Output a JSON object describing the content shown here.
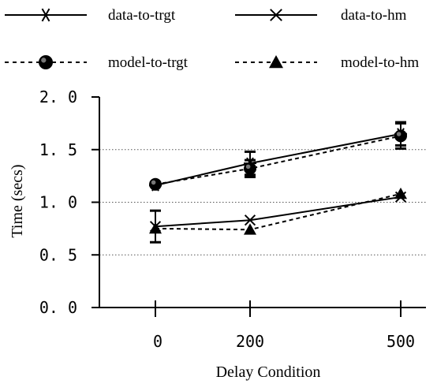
{
  "chart_data": {
    "type": "line",
    "xlabel": "Delay Condition",
    "ylabel": "Time (secs)",
    "ylim": [
      0,
      2.0
    ],
    "yticks": [
      "0. 0",
      "0. 5",
      "1. 0",
      "1. 5",
      "2. 0"
    ],
    "ytick_values": [
      0,
      0.5,
      1.0,
      1.5,
      2.0
    ],
    "grid": "horizontal dotted at 0.5, 1.0, 1.5",
    "legend_position": "top",
    "x": [
      0,
      200,
      500
    ],
    "xtick_labels": [
      "0",
      "200",
      "500"
    ],
    "series": [
      {
        "name": "data-to-trgt",
        "style": "solid",
        "marker": "asterisk",
        "values": [
          1.16,
          1.37,
          1.65
        ],
        "error": [
          null,
          0.11,
          0.11
        ]
      },
      {
        "name": "data-to-hm",
        "style": "solid",
        "marker": "x",
        "values": [
          0.77,
          0.83,
          1.05
        ],
        "error": [
          0.15,
          null,
          null
        ]
      },
      {
        "name": "model-to-trgt",
        "style": "dashed",
        "marker": "circle",
        "values": [
          1.17,
          1.32,
          1.63
        ],
        "error": [
          null,
          0.08,
          0.12
        ]
      },
      {
        "name": "model-to-hm",
        "style": "dashed",
        "marker": "triangle",
        "values": [
          0.75,
          0.74,
          1.08
        ],
        "error": [
          null,
          null,
          null
        ]
      }
    ]
  }
}
